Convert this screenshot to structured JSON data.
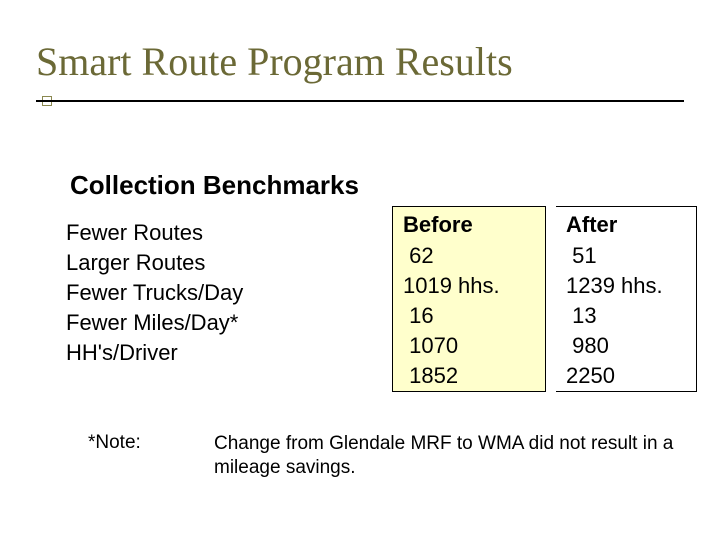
{
  "title": "Smart Route Program Results",
  "subtitle": "Collection Benchmarks",
  "metrics": {
    "labels": [
      "Fewer Routes",
      "Larger Routes",
      "Fewer Trucks/Day",
      "Fewer Miles/Day*",
      "HH's/Driver"
    ]
  },
  "columns": {
    "before": {
      "header": "Before",
      "values": [
        " 62",
        "1019 hhs.",
        " 16",
        " 1070",
        " 1852"
      ],
      "background": "#ffffcc"
    },
    "after": {
      "header": "After",
      "values": [
        " 51",
        "1239 hhs.",
        " 13",
        " 980",
        "2250"
      ],
      "background": "#ffffff"
    }
  },
  "note": {
    "label": "*Note:",
    "text": "Change from Glendale MRF to WMA did not result in a mileage savings."
  },
  "style": {
    "title_color": "#6b6936",
    "title_fontsize": 40,
    "body_fontsize": 22,
    "note_fontsize": 19,
    "rule_color": "#000000",
    "bullet_border": "#8a8850",
    "before_bg": "#ffffcc",
    "page_bg": "#ffffff"
  }
}
